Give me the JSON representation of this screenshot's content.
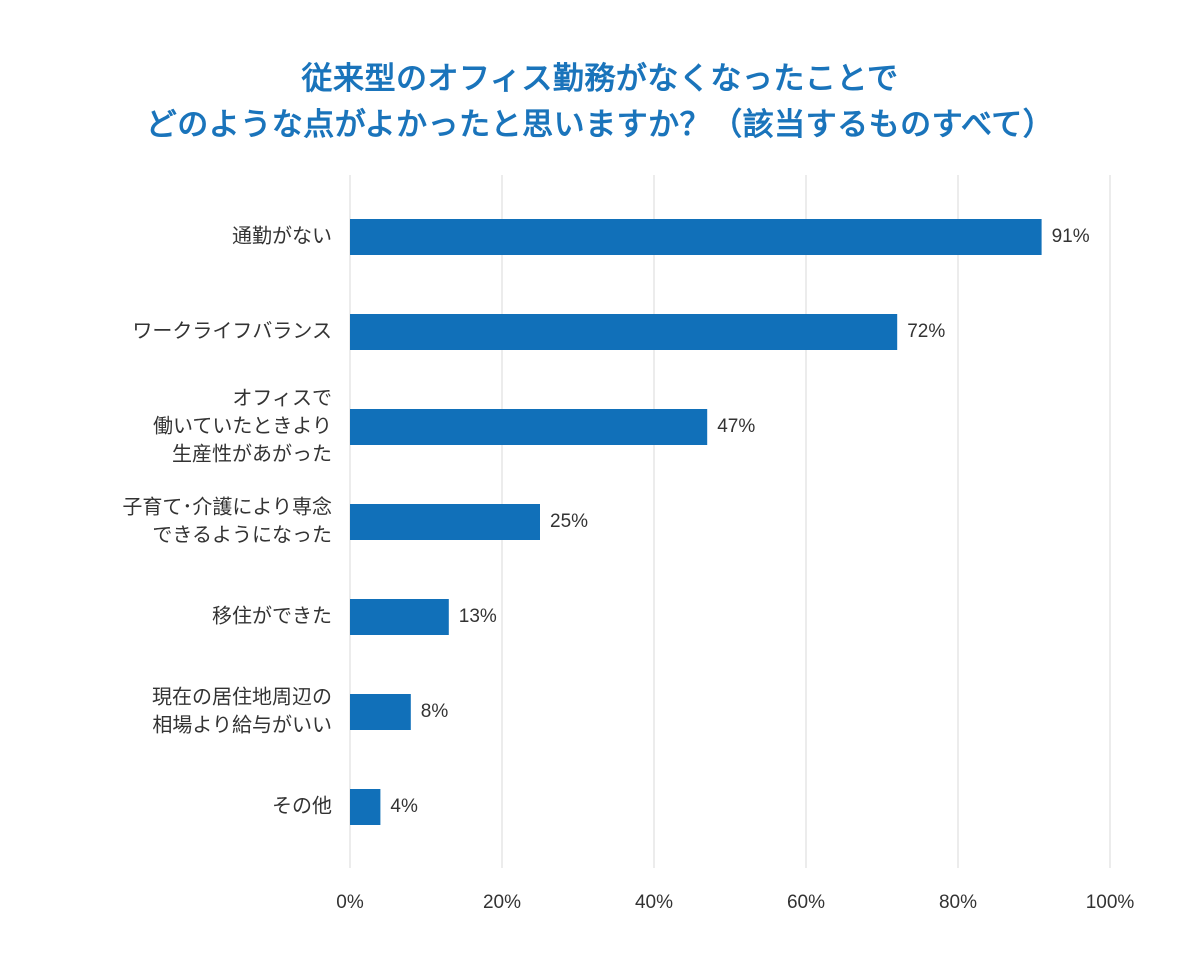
{
  "chart_data": {
    "type": "bar",
    "orientation": "horizontal",
    "title": [
      "従来型のオフィス勤務がなくなったことで",
      "どのような点がよかったと思いますか？（該当するものすべて）"
    ],
    "categories": [
      [
        "通勤がない"
      ],
      [
        "ワークライフバランス"
      ],
      [
        "オフィスで",
        "働いていたときより",
        "生産性があがった"
      ],
      [
        "子育て･介護により専念",
        "できるようになった"
      ],
      [
        "移住ができた"
      ],
      [
        "現在の居住地周辺の",
        "相場より給与がいい"
      ],
      [
        "その他"
      ]
    ],
    "values": [
      91,
      72,
      47,
      25,
      13,
      8,
      4
    ],
    "value_labels": [
      "91%",
      "72%",
      "47%",
      "25%",
      "13%",
      "8%",
      "4%"
    ],
    "xlim": [
      0,
      100
    ],
    "x_ticks": [
      0,
      20,
      40,
      60,
      80,
      100
    ],
    "x_tick_labels": [
      "0%",
      "20%",
      "40%",
      "60%",
      "80%",
      "100%"
    ],
    "grid": "vertical",
    "colors": {
      "bar": "#1170b9",
      "title": "#1a74bb"
    }
  }
}
